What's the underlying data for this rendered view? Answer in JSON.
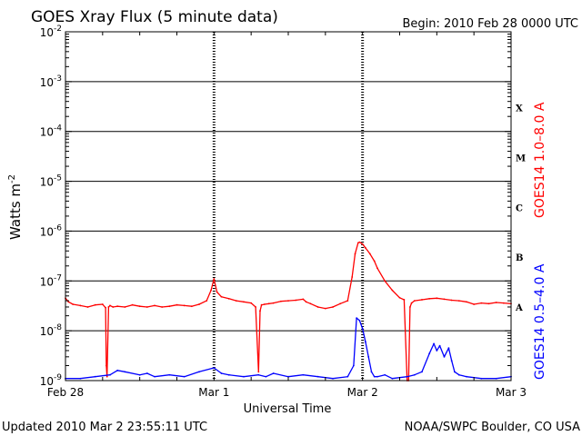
{
  "chart_data": {
    "type": "line",
    "title": "GOES Xray Flux (5 minute data)",
    "begin": "Begin:  2010 Feb 28 0000 UTC",
    "xlabel": "Universal Time",
    "ylabel": "Watts m",
    "ylabel_sup": "-2",
    "x_unit": "days since Feb 28 0000 UTC",
    "xlim": [
      0,
      3
    ],
    "x_ticks": [
      {
        "value": 0,
        "label": "Feb 28"
      },
      {
        "value": 1,
        "label": "Mar 1"
      },
      {
        "value": 2,
        "label": "Mar 2"
      },
      {
        "value": 3,
        "label": "Mar 3"
      }
    ],
    "yscale": "log",
    "ylim": [
      1e-09,
      0.01
    ],
    "y_ticks": [
      {
        "value": 0.01,
        "base": "10",
        "exp": "-2"
      },
      {
        "value": 0.001,
        "base": "10",
        "exp": "-3"
      },
      {
        "value": 0.0001,
        "base": "10",
        "exp": "-4"
      },
      {
        "value": 1e-05,
        "base": "10",
        "exp": "-5"
      },
      {
        "value": 1e-06,
        "base": "10",
        "exp": "-6"
      },
      {
        "value": 1e-07,
        "base": "10",
        "exp": "-7"
      },
      {
        "value": 1e-08,
        "base": "10",
        "exp": "-8"
      },
      {
        "value": 1e-09,
        "base": "10",
        "exp": "-9"
      }
    ],
    "flare_classes": [
      {
        "label": "X",
        "value": 0.0003
      },
      {
        "label": "M",
        "value": 3e-05
      },
      {
        "label": "C",
        "value": 3e-06
      },
      {
        "label": "B",
        "value": 3e-07
      },
      {
        "label": "A",
        "value": 3e-08
      }
    ],
    "grid": "horizontal lines at each decade above 1e-9; dashed vertical lines at day boundaries",
    "series": [
      {
        "name": "GOES14 1.0–8.0 A",
        "color": "#ff0000",
        "x": [
          0.0,
          0.02,
          0.05,
          0.1,
          0.15,
          0.2,
          0.25,
          0.27,
          0.275,
          0.28,
          0.29,
          0.3,
          0.32,
          0.35,
          0.4,
          0.45,
          0.5,
          0.55,
          0.6,
          0.65,
          0.7,
          0.75,
          0.8,
          0.85,
          0.9,
          0.95,
          0.98,
          1.0,
          1.02,
          1.05,
          1.1,
          1.15,
          1.2,
          1.25,
          1.28,
          1.3,
          1.31,
          1.32,
          1.34,
          1.37,
          1.4,
          1.45,
          1.5,
          1.55,
          1.6,
          1.62,
          1.65,
          1.7,
          1.75,
          1.8,
          1.85,
          1.9,
          1.93,
          1.95,
          1.97,
          1.98,
          2.0,
          2.02,
          2.05,
          2.08,
          2.1,
          2.15,
          2.2,
          2.25,
          2.28,
          2.3,
          2.31,
          2.32,
          2.33,
          2.35,
          2.4,
          2.45,
          2.5,
          2.55,
          2.6,
          2.65,
          2.7,
          2.75,
          2.8,
          2.85,
          2.9,
          2.95,
          3.0
        ],
        "y": [
          4.5e-08,
          3.8e-08,
          3.4e-08,
          3.2e-08,
          3e-08,
          3.3e-08,
          3.4e-08,
          2.9e-08,
          2e-09,
          1.2e-09,
          3e-08,
          3.2e-08,
          3e-08,
          3.1e-08,
          3e-08,
          3.3e-08,
          3.1e-08,
          3e-08,
          3.2e-08,
          3e-08,
          3.1e-08,
          3.3e-08,
          3.2e-08,
          3.1e-08,
          3.4e-08,
          4e-08,
          6.5e-08,
          1.1e-07,
          6e-08,
          4.8e-08,
          4.4e-08,
          4e-08,
          3.8e-08,
          3.6e-08,
          3e-08,
          1.5e-09,
          2.5e-08,
          3.3e-08,
          3.4e-08,
          3.5e-08,
          3.6e-08,
          3.9e-08,
          4e-08,
          4.1e-08,
          4.3e-08,
          3.8e-08,
          3.5e-08,
          3e-08,
          2.8e-08,
          3e-08,
          3.5e-08,
          4e-08,
          1.2e-07,
          3.5e-07,
          5.8e-07,
          6e-07,
          5.5e-07,
          4.6e-07,
          3.5e-07,
          2.5e-07,
          1.8e-07,
          1e-07,
          6.5e-08,
          4.6e-08,
          4.2e-08,
          1e-09,
          1e-09,
          3e-08,
          3.6e-08,
          4e-08,
          4.2e-08,
          4.4e-08,
          4.5e-08,
          4.3e-08,
          4.1e-08,
          4e-08,
          3.8e-08,
          3.4e-08,
          3.6e-08,
          3.5e-08,
          3.7e-08,
          3.6e-08,
          3.5e-08
        ]
      },
      {
        "name": "GOES14 0.5–4.0 A",
        "color": "#0000ff",
        "x": [
          0.0,
          0.1,
          0.2,
          0.3,
          0.35,
          0.4,
          0.5,
          0.55,
          0.6,
          0.7,
          0.8,
          0.9,
          1.0,
          1.05,
          1.1,
          1.2,
          1.3,
          1.35,
          1.4,
          1.5,
          1.6,
          1.7,
          1.8,
          1.9,
          1.94,
          1.96,
          1.98,
          2.0,
          2.02,
          2.04,
          2.06,
          2.08,
          2.1,
          2.15,
          2.2,
          2.3,
          2.35,
          2.4,
          2.45,
          2.48,
          2.5,
          2.52,
          2.55,
          2.58,
          2.6,
          2.62,
          2.65,
          2.7,
          2.8,
          2.9,
          3.0
        ],
        "y": [
          1.1e-09,
          1.1e-09,
          1.2e-09,
          1.3e-09,
          1.6e-09,
          1.5e-09,
          1.3e-09,
          1.4e-09,
          1.2e-09,
          1.3e-09,
          1.2e-09,
          1.5e-09,
          1.8e-09,
          1.4e-09,
          1.3e-09,
          1.2e-09,
          1.3e-09,
          1.2e-09,
          1.4e-09,
          1.2e-09,
          1.3e-09,
          1.2e-09,
          1.1e-09,
          1.2e-09,
          2e-09,
          1.8e-08,
          1.6e-08,
          1.1e-08,
          6e-09,
          3e-09,
          1.5e-09,
          1.2e-09,
          1.2e-09,
          1.3e-09,
          1.1e-09,
          1.2e-09,
          1.3e-09,
          1.5e-09,
          3.5e-09,
          5.5e-09,
          4e-09,
          5e-09,
          3e-09,
          4.5e-09,
          2.5e-09,
          1.5e-09,
          1.3e-09,
          1.2e-09,
          1.1e-09,
          1.1e-09,
          1.2e-09
        ]
      }
    ]
  },
  "footer": {
    "updated": "Updated 2010 Mar  2 23:55:11 UTC",
    "credit": "NOAA/SWPC Boulder, CO USA"
  }
}
